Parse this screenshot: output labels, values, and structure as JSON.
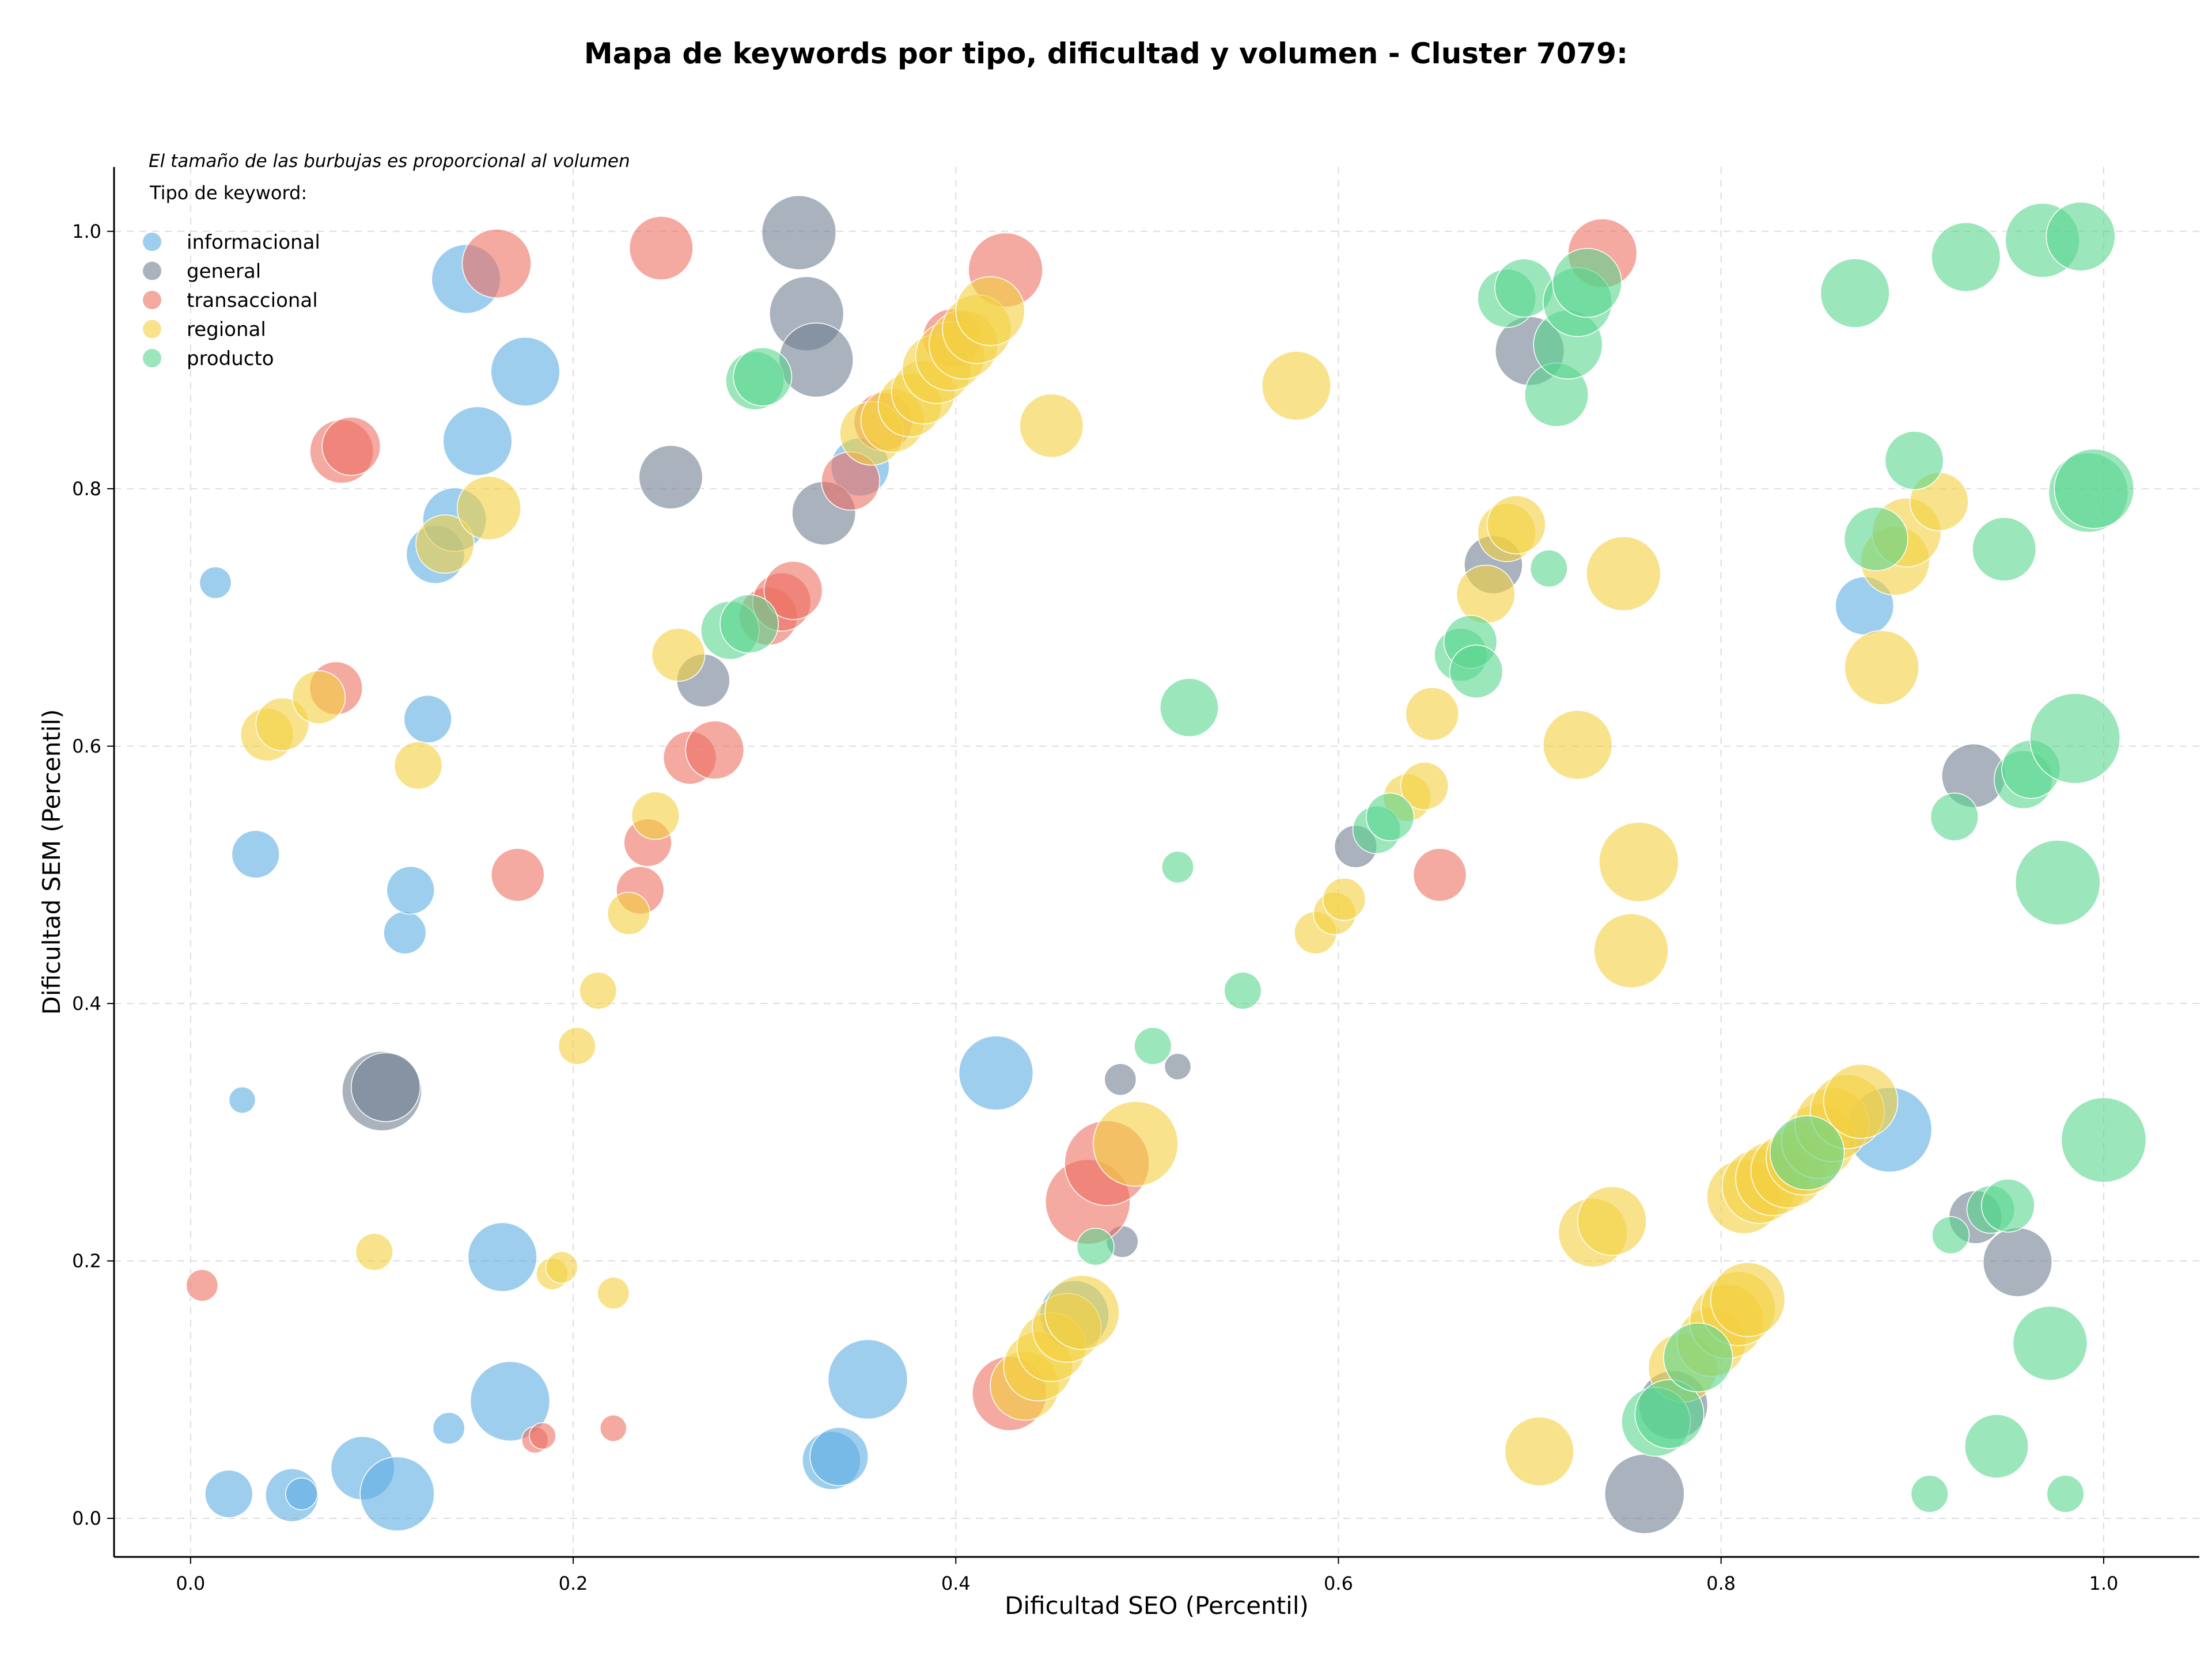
{
  "chart_data": {
    "type": "scatter",
    "title": "Mapa de keywords por tipo, dificultad y volumen - Cluster 7079:",
    "xlabel": "Dificultad SEO (Percentil)",
    "ylabel": "Dificultad SEM (Percentil)",
    "xlim": [
      -0.04,
      1.05
    ],
    "ylim": [
      -0.03,
      1.05
    ],
    "xticks": [
      "0.0",
      "0.2",
      "0.4",
      "0.6",
      "0.8",
      "1.0"
    ],
    "yticks": [
      "0.0",
      "0.2",
      "0.4",
      "0.6",
      "0.8",
      "1.0"
    ],
    "grid": true,
    "legend_placement": "top-left",
    "note": "El tamaño de las burbujas es proporcional al volumen",
    "legend_title": "Tipo de keyword:",
    "series": [
      {
        "name": "informacional",
        "color": "#5DADE2",
        "points": [
          {
            "x": 0.013,
            "y": 0.727,
            "s": 6
          },
          {
            "x": 0.027,
            "y": 0.325,
            "s": 5
          },
          {
            "x": 0.034,
            "y": 0.516,
            "s": 9
          },
          {
            "x": 0.02,
            "y": 0.019,
            "s": 9
          },
          {
            "x": 0.053,
            "y": 0.018,
            "s": 10
          },
          {
            "x": 0.058,
            "y": 0.019,
            "s": 6
          },
          {
            "x": 0.09,
            "y": 0.039,
            "s": 12
          },
          {
            "x": 0.108,
            "y": 0.019,
            "s": 14
          },
          {
            "x": 0.112,
            "y": 0.455,
            "s": 8
          },
          {
            "x": 0.115,
            "y": 0.488,
            "s": 9
          },
          {
            "x": 0.124,
            "y": 0.621,
            "s": 9
          },
          {
            "x": 0.128,
            "y": 0.749,
            "s": 11
          },
          {
            "x": 0.138,
            "y": 0.776,
            "s": 12
          },
          {
            "x": 0.135,
            "y": 0.07,
            "s": 6
          },
          {
            "x": 0.144,
            "y": 0.963,
            "s": 13
          },
          {
            "x": 0.15,
            "y": 0.837,
            "s": 13
          },
          {
            "x": 0.163,
            "y": 0.203,
            "s": 13
          },
          {
            "x": 0.167,
            "y": 0.091,
            "s": 15
          },
          {
            "x": 0.175,
            "y": 0.891,
            "s": 13
          },
          {
            "x": 0.335,
            "y": 0.045,
            "s": 11
          },
          {
            "x": 0.339,
            "y": 0.048,
            "s": 11
          },
          {
            "x": 0.354,
            "y": 0.108,
            "s": 15
          },
          {
            "x": 0.35,
            "y": 0.817,
            "s": 11
          },
          {
            "x": 0.421,
            "y": 0.346,
            "s": 14
          },
          {
            "x": 0.462,
            "y": 0.158,
            "s": 13
          },
          {
            "x": 0.875,
            "y": 0.709,
            "s": 11
          },
          {
            "x": 0.888,
            "y": 0.302,
            "s": 16
          }
        ]
      },
      {
        "name": "general",
        "color": "#707F91",
        "points": [
          {
            "x": 0.1,
            "y": 0.332,
            "s": 15
          },
          {
            "x": 0.102,
            "y": 0.335,
            "s": 13
          },
          {
            "x": 0.251,
            "y": 0.809,
            "s": 12
          },
          {
            "x": 0.268,
            "y": 0.651,
            "s": 10
          },
          {
            "x": 0.318,
            "y": 0.999,
            "s": 14
          },
          {
            "x": 0.322,
            "y": 0.936,
            "s": 14
          },
          {
            "x": 0.327,
            "y": 0.9,
            "s": 14
          },
          {
            "x": 0.331,
            "y": 0.781,
            "s": 12
          },
          {
            "x": 0.486,
            "y": 0.341,
            "s": 6
          },
          {
            "x": 0.487,
            "y": 0.215,
            "s": 6
          },
          {
            "x": 0.516,
            "y": 0.351,
            "s": 5
          },
          {
            "x": 0.609,
            "y": 0.522,
            "s": 8
          },
          {
            "x": 0.681,
            "y": 0.741,
            "s": 11
          },
          {
            "x": 0.7,
            "y": 0.907,
            "s": 13
          },
          {
            "x": 0.76,
            "y": 0.019,
            "s": 15
          },
          {
            "x": 0.775,
            "y": 0.088,
            "s": 13
          },
          {
            "x": 0.932,
            "y": 0.577,
            "s": 12
          },
          {
            "x": 0.933,
            "y": 0.234,
            "s": 10
          },
          {
            "x": 0.955,
            "y": 0.199,
            "s": 13
          }
        ]
      },
      {
        "name": "transaccional",
        "color": "#EC7063",
        "points": [
          {
            "x": 0.006,
            "y": 0.181,
            "s": 6
          },
          {
            "x": 0.079,
            "y": 0.829,
            "s": 12
          },
          {
            "x": 0.084,
            "y": 0.833,
            "s": 11
          },
          {
            "x": 0.076,
            "y": 0.645,
            "s": 10
          },
          {
            "x": 0.16,
            "y": 0.975,
            "s": 13
          },
          {
            "x": 0.171,
            "y": 0.5,
            "s": 10
          },
          {
            "x": 0.18,
            "y": 0.061,
            "s": 5
          },
          {
            "x": 0.184,
            "y": 0.064,
            "s": 5
          },
          {
            "x": 0.221,
            "y": 0.07,
            "s": 5
          },
          {
            "x": 0.235,
            "y": 0.488,
            "s": 9
          },
          {
            "x": 0.239,
            "y": 0.525,
            "s": 9
          },
          {
            "x": 0.246,
            "y": 0.987,
            "s": 12
          },
          {
            "x": 0.261,
            "y": 0.591,
            "s": 10
          },
          {
            "x": 0.274,
            "y": 0.597,
            "s": 11
          },
          {
            "x": 0.302,
            "y": 0.701,
            "s": 11
          },
          {
            "x": 0.309,
            "y": 0.712,
            "s": 11
          },
          {
            "x": 0.315,
            "y": 0.721,
            "s": 11
          },
          {
            "x": 0.345,
            "y": 0.806,
            "s": 11
          },
          {
            "x": 0.362,
            "y": 0.852,
            "s": 11
          },
          {
            "x": 0.398,
            "y": 0.917,
            "s": 11
          },
          {
            "x": 0.426,
            "y": 0.97,
            "s": 14
          },
          {
            "x": 0.428,
            "y": 0.097,
            "s": 14
          },
          {
            "x": 0.469,
            "y": 0.246,
            "s": 16
          },
          {
            "x": 0.479,
            "y": 0.276,
            "s": 16
          },
          {
            "x": 0.653,
            "y": 0.5,
            "s": 10
          },
          {
            "x": 0.738,
            "y": 0.983,
            "s": 13
          }
        ]
      },
      {
        "name": "regional",
        "color": "#F4D03F",
        "points": [
          {
            "x": 0.04,
            "y": 0.609,
            "s": 10
          },
          {
            "x": 0.048,
            "y": 0.617,
            "s": 10
          },
          {
            "x": 0.067,
            "y": 0.638,
            "s": 10
          },
          {
            "x": 0.096,
            "y": 0.207,
            "s": 7
          },
          {
            "x": 0.119,
            "y": 0.585,
            "s": 9
          },
          {
            "x": 0.133,
            "y": 0.757,
            "s": 11
          },
          {
            "x": 0.156,
            "y": 0.785,
            "s": 12
          },
          {
            "x": 0.189,
            "y": 0.19,
            "s": 6
          },
          {
            "x": 0.194,
            "y": 0.195,
            "s": 6
          },
          {
            "x": 0.202,
            "y": 0.367,
            "s": 7
          },
          {
            "x": 0.213,
            "y": 0.41,
            "s": 7
          },
          {
            "x": 0.221,
            "y": 0.175,
            "s": 6
          },
          {
            "x": 0.229,
            "y": 0.47,
            "s": 8
          },
          {
            "x": 0.243,
            "y": 0.546,
            "s": 9
          },
          {
            "x": 0.255,
            "y": 0.671,
            "s": 10
          },
          {
            "x": 0.356,
            "y": 0.843,
            "s": 12
          },
          {
            "x": 0.367,
            "y": 0.853,
            "s": 12
          },
          {
            "x": 0.376,
            "y": 0.865,
            "s": 12
          },
          {
            "x": 0.383,
            "y": 0.875,
            "s": 12
          },
          {
            "x": 0.39,
            "y": 0.893,
            "s": 13
          },
          {
            "x": 0.397,
            "y": 0.903,
            "s": 13
          },
          {
            "x": 0.404,
            "y": 0.912,
            "s": 13
          },
          {
            "x": 0.411,
            "y": 0.924,
            "s": 13
          },
          {
            "x": 0.418,
            "y": 0.938,
            "s": 13
          },
          {
            "x": 0.436,
            "y": 0.103,
            "s": 13
          },
          {
            "x": 0.443,
            "y": 0.118,
            "s": 13
          },
          {
            "x": 0.45,
            "y": 0.133,
            "s": 13
          },
          {
            "x": 0.458,
            "y": 0.148,
            "s": 13
          },
          {
            "x": 0.466,
            "y": 0.16,
            "s": 14
          },
          {
            "x": 0.45,
            "y": 0.849,
            "s": 12
          },
          {
            "x": 0.494,
            "y": 0.291,
            "s": 16
          },
          {
            "x": 0.578,
            "y": 0.88,
            "s": 13
          },
          {
            "x": 0.588,
            "y": 0.455,
            "s": 8
          },
          {
            "x": 0.598,
            "y": 0.47,
            "s": 8
          },
          {
            "x": 0.603,
            "y": 0.481,
            "s": 8
          },
          {
            "x": 0.636,
            "y": 0.56,
            "s": 9
          },
          {
            "x": 0.645,
            "y": 0.569,
            "s": 9
          },
          {
            "x": 0.649,
            "y": 0.625,
            "s": 10
          },
          {
            "x": 0.677,
            "y": 0.718,
            "s": 11
          },
          {
            "x": 0.688,
            "y": 0.766,
            "s": 11
          },
          {
            "x": 0.693,
            "y": 0.772,
            "s": 11
          },
          {
            "x": 0.705,
            "y": 0.052,
            "s": 13
          },
          {
            "x": 0.725,
            "y": 0.601,
            "s": 13
          },
          {
            "x": 0.733,
            "y": 0.222,
            "s": 13
          },
          {
            "x": 0.743,
            "y": 0.231,
            "s": 13
          },
          {
            "x": 0.749,
            "y": 0.734,
            "s": 14
          },
          {
            "x": 0.753,
            "y": 0.441,
            "s": 14
          },
          {
            "x": 0.757,
            "y": 0.51,
            "s": 15
          },
          {
            "x": 0.78,
            "y": 0.117,
            "s": 13
          },
          {
            "x": 0.795,
            "y": 0.137,
            "s": 13
          },
          {
            "x": 0.803,
            "y": 0.153,
            "s": 14
          },
          {
            "x": 0.809,
            "y": 0.163,
            "s": 14
          },
          {
            "x": 0.814,
            "y": 0.17,
            "s": 14
          },
          {
            "x": 0.812,
            "y": 0.25,
            "s": 14
          },
          {
            "x": 0.82,
            "y": 0.258,
            "s": 14
          },
          {
            "x": 0.827,
            "y": 0.264,
            "s": 14
          },
          {
            "x": 0.835,
            "y": 0.27,
            "s": 14
          },
          {
            "x": 0.843,
            "y": 0.28,
            "s": 14
          },
          {
            "x": 0.851,
            "y": 0.293,
            "s": 14
          },
          {
            "x": 0.858,
            "y": 0.306,
            "s": 14
          },
          {
            "x": 0.866,
            "y": 0.316,
            "s": 14
          },
          {
            "x": 0.873,
            "y": 0.324,
            "s": 14
          },
          {
            "x": 0.884,
            "y": 0.661,
            "s": 14
          },
          {
            "x": 0.891,
            "y": 0.744,
            "s": 13
          },
          {
            "x": 0.897,
            "y": 0.766,
            "s": 13
          },
          {
            "x": 0.914,
            "y": 0.79,
            "s": 11
          }
        ]
      },
      {
        "name": "producto",
        "color": "#58D68D",
        "points": [
          {
            "x": 0.282,
            "y": 0.69,
            "s": 11
          },
          {
            "x": 0.292,
            "y": 0.695,
            "s": 11
          },
          {
            "x": 0.295,
            "y": 0.884,
            "s": 11
          },
          {
            "x": 0.299,
            "y": 0.887,
            "s": 11
          },
          {
            "x": 0.473,
            "y": 0.211,
            "s": 7
          },
          {
            "x": 0.503,
            "y": 0.367,
            "s": 7
          },
          {
            "x": 0.516,
            "y": 0.506,
            "s": 6
          },
          {
            "x": 0.522,
            "y": 0.63,
            "s": 11
          },
          {
            "x": 0.55,
            "y": 0.41,
            "s": 7
          },
          {
            "x": 0.62,
            "y": 0.535,
            "s": 9
          },
          {
            "x": 0.627,
            "y": 0.545,
            "s": 9
          },
          {
            "x": 0.664,
            "y": 0.671,
            "s": 10
          },
          {
            "x": 0.669,
            "y": 0.681,
            "s": 10
          },
          {
            "x": 0.672,
            "y": 0.658,
            "s": 10
          },
          {
            "x": 0.688,
            "y": 0.948,
            "s": 11
          },
          {
            "x": 0.697,
            "y": 0.956,
            "s": 11
          },
          {
            "x": 0.71,
            "y": 0.738,
            "s": 7
          },
          {
            "x": 0.714,
            "y": 0.873,
            "s": 12
          },
          {
            "x": 0.72,
            "y": 0.912,
            "s": 13
          },
          {
            "x": 0.725,
            "y": 0.945,
            "s": 13
          },
          {
            "x": 0.73,
            "y": 0.96,
            "s": 13
          },
          {
            "x": 0.766,
            "y": 0.075,
            "s": 13
          },
          {
            "x": 0.773,
            "y": 0.081,
            "s": 13
          },
          {
            "x": 0.788,
            "y": 0.125,
            "s": 13
          },
          {
            "x": 0.845,
            "y": 0.284,
            "s": 14
          },
          {
            "x": 0.87,
            "y": 0.952,
            "s": 13
          },
          {
            "x": 0.881,
            "y": 0.761,
            "s": 12
          },
          {
            "x": 0.901,
            "y": 0.822,
            "s": 11
          },
          {
            "x": 0.909,
            "y": 0.019,
            "s": 7
          },
          {
            "x": 0.92,
            "y": 0.22,
            "s": 7
          },
          {
            "x": 0.922,
            "y": 0.545,
            "s": 9
          },
          {
            "x": 0.928,
            "y": 0.98,
            "s": 13
          },
          {
            "x": 0.941,
            "y": 0.24,
            "s": 9
          },
          {
            "x": 0.944,
            "y": 0.056,
            "s": 12
          },
          {
            "x": 0.948,
            "y": 0.753,
            "s": 12
          },
          {
            "x": 0.95,
            "y": 0.243,
            "s": 10
          },
          {
            "x": 0.958,
            "y": 0.574,
            "s": 11
          },
          {
            "x": 0.962,
            "y": 0.582,
            "s": 11
          },
          {
            "x": 0.968,
            "y": 0.993,
            "s": 14
          },
          {
            "x": 0.972,
            "y": 0.136,
            "s": 14
          },
          {
            "x": 0.976,
            "y": 0.494,
            "s": 16
          },
          {
            "x": 0.98,
            "y": 0.019,
            "s": 7
          },
          {
            "x": 0.985,
            "y": 0.606,
            "s": 17
          },
          {
            "x": 0.988,
            "y": 0.996,
            "s": 13
          },
          {
            "x": 0.992,
            "y": 0.797,
            "s": 15
          },
          {
            "x": 0.995,
            "y": 0.8,
            "s": 15
          },
          {
            "x": 1.0,
            "y": 0.294,
            "s": 16
          }
        ]
      }
    ]
  }
}
